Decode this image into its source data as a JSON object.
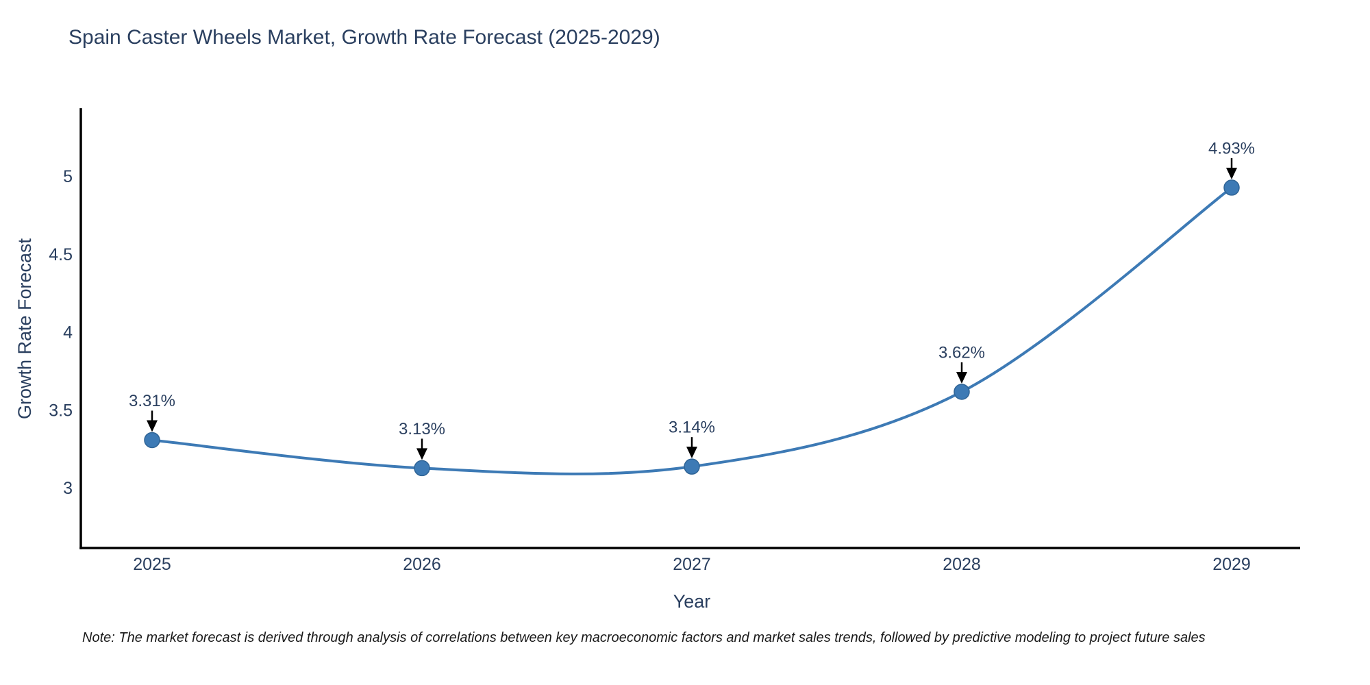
{
  "title": "Spain Caster Wheels Market, Growth Rate Forecast (2025-2029)",
  "note": "Note: The market forecast is derived through analysis of correlations between key macroeconomic factors and market sales trends, followed by predictive modeling to project future sales",
  "chart_data": {
    "type": "line",
    "title": "Spain Caster Wheels Market, Growth Rate Forecast (2025-2029)",
    "categories": [
      "2025",
      "2026",
      "2027",
      "2028",
      "2029"
    ],
    "x": [
      2025,
      2026,
      2027,
      2028,
      2029
    ],
    "series": [
      {
        "name": "Growth Rate Forecast",
        "values": [
          3.31,
          3.13,
          3.14,
          3.62,
          4.93
        ],
        "point_labels": [
          "3.31%",
          "3.13%",
          "3.14%",
          "3.62%",
          "4.93%"
        ]
      }
    ],
    "xlabel": "Year",
    "ylabel": "Growth Rate Forecast",
    "y_ticks": [
      3,
      3.5,
      4,
      4.5,
      5
    ],
    "y_tick_labels": [
      "3",
      "3.5",
      "4",
      "4.5",
      "5"
    ],
    "ylim": [
      2.62,
      5.44
    ],
    "grid": false,
    "legend": "none",
    "line_shape": "spline",
    "annotations_have_arrows": true,
    "colors": {
      "line": "#3d7ab5",
      "marker_fill": "#3d7ab5",
      "marker_edge": "#2f6496",
      "arrow": "#000000",
      "axis_line": "#000000",
      "text": "#2a3f5f",
      "note_text": "#1a1a1a"
    }
  }
}
